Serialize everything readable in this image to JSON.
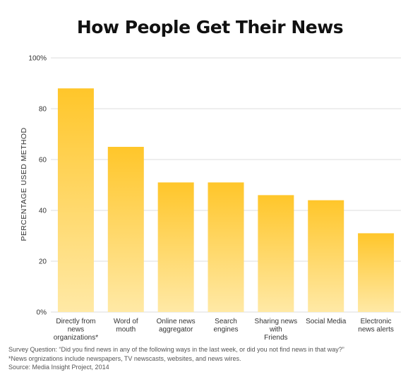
{
  "chart_data": {
    "type": "bar",
    "title": "How People Get Their News",
    "ylabel": "PERCENTAGE USED METHOD",
    "xlabel": "",
    "ylim": [
      0,
      100
    ],
    "yticks": [
      {
        "value": 0,
        "label": "0%"
      },
      {
        "value": 20,
        "label": "20"
      },
      {
        "value": 40,
        "label": "40"
      },
      {
        "value": 60,
        "label": "60"
      },
      {
        "value": 80,
        "label": "80"
      },
      {
        "value": 100,
        "label": "100%"
      }
    ],
    "categories": [
      [
        "Directly from",
        "news",
        "organizations*"
      ],
      [
        "Word of",
        "mouth"
      ],
      [
        "Online news",
        "aggregator"
      ],
      [
        "Search",
        "engines"
      ],
      [
        "Sharing news",
        "with",
        "Friends"
      ],
      [
        "Social Media"
      ],
      [
        "Electronic",
        "news alerts"
      ]
    ],
    "values": [
      88,
      65,
      51,
      51,
      46,
      44,
      31
    ],
    "grid": true,
    "colors": {
      "bar_top": "#FFC62A",
      "bar_bottom": "#FFE9A6",
      "grid": "#DDDDDD",
      "axis_text": "#333333"
    }
  },
  "notes": {
    "survey_question": "Survey Question: “Did you find news in any of the following ways in the last week, or did you not find news in that way?”",
    "footnote": "*News orgnizations include newspapers, TV newscasts, websites, and news wires.",
    "source": "Source: Media Insight Project, 2014"
  }
}
